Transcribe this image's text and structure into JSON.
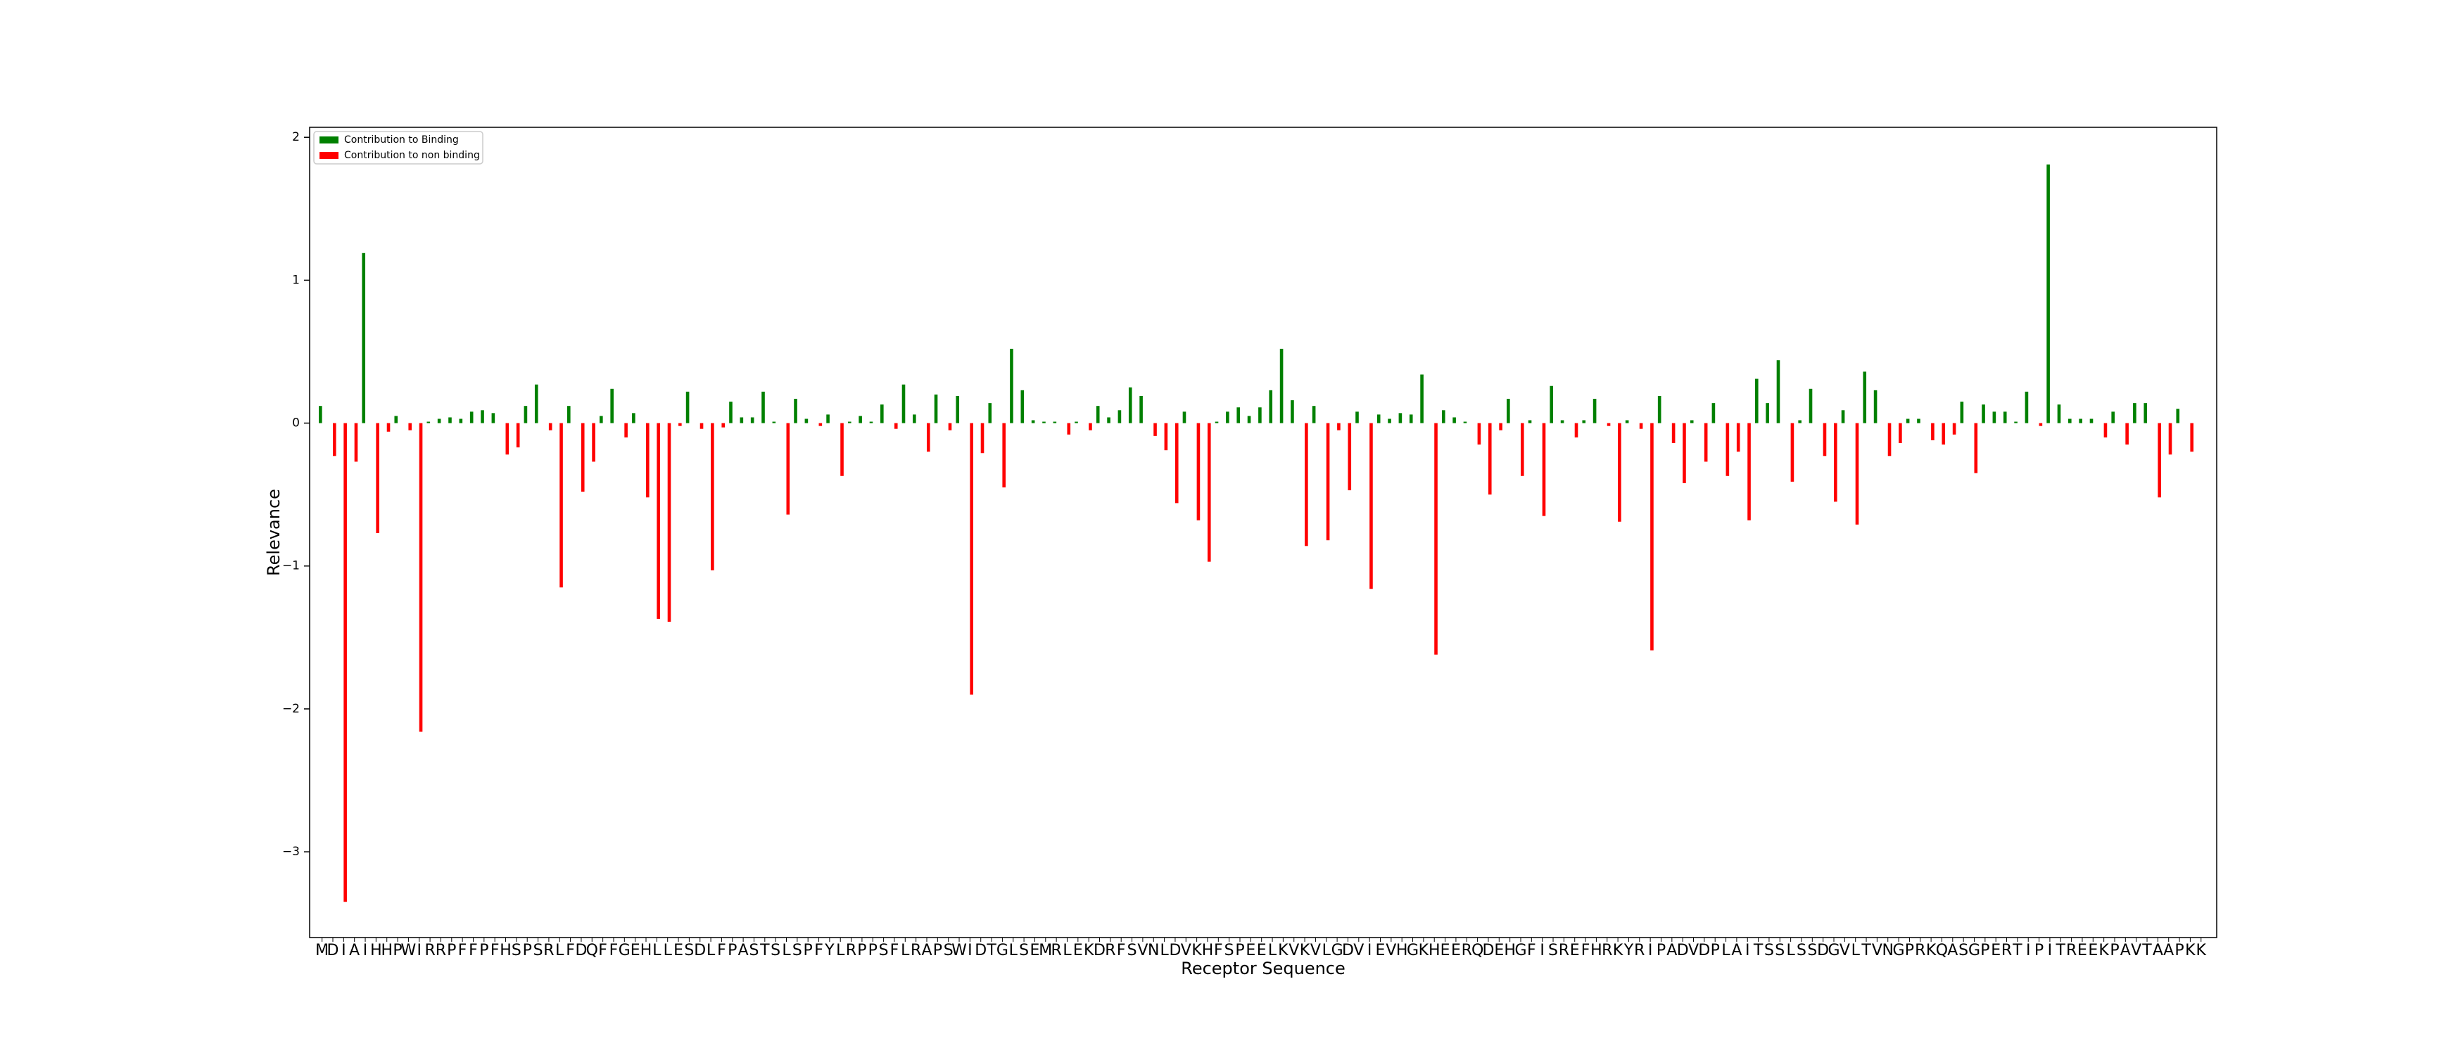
{
  "chart_data": {
    "type": "bar",
    "x_label": "Receptor Sequence",
    "y_label": "Relevance",
    "legend": "upper left",
    "ylim": [
      -3.6,
      2.07
    ],
    "yticks": [
      {
        "value": -3,
        "label": "−3"
      },
      {
        "value": -2,
        "label": "−2"
      },
      {
        "value": -1,
        "label": "−1"
      },
      0,
      1,
      2
    ],
    "categories": [
      "M",
      "D",
      "I",
      "A",
      "I",
      "H",
      "H",
      "P",
      "W",
      "I",
      "R",
      "R",
      "P",
      "F",
      "F",
      "P",
      "F",
      "H",
      "S",
      "P",
      "S",
      "R",
      "L",
      "F",
      "D",
      "Q",
      "F",
      "F",
      "G",
      "E",
      "H",
      "L",
      "L",
      "E",
      "S",
      "D",
      "L",
      "F",
      "P",
      "A",
      "S",
      "T",
      "S",
      "L",
      "S",
      "P",
      "F",
      "Y",
      "L",
      "R",
      "P",
      "P",
      "S",
      "F",
      "L",
      "R",
      "A",
      "P",
      "S",
      "W",
      "I",
      "D",
      "T",
      "G",
      "L",
      "S",
      "E",
      "M",
      "R",
      "L",
      "E",
      "K",
      "D",
      "R",
      "F",
      "S",
      "V",
      "N",
      "L",
      "D",
      "V",
      "K",
      "H",
      "F",
      "S",
      "P",
      "E",
      "E",
      "L",
      "K",
      "V",
      "K",
      "V",
      "L",
      "G",
      "D",
      "V",
      "I",
      "E",
      "V",
      "H",
      "G",
      "K",
      "H",
      "E",
      "E",
      "R",
      "Q",
      "D",
      "E",
      "H",
      "G",
      "F",
      "I",
      "S",
      "R",
      "E",
      "F",
      "H",
      "R",
      "K",
      "Y",
      "R",
      "I",
      "P",
      "A",
      "D",
      "V",
      "D",
      "P",
      "L",
      "A",
      "I",
      "T",
      "S",
      "S",
      "L",
      "S",
      "S",
      "D",
      "G",
      "V",
      "L",
      "T",
      "V",
      "N",
      "G",
      "P",
      "R",
      "K",
      "Q",
      "A",
      "S",
      "G",
      "P",
      "E",
      "R",
      "T",
      "I",
      "P",
      "I",
      "T",
      "R",
      "E",
      "E",
      "K",
      "P",
      "A",
      "V",
      "T",
      "A",
      "A",
      "P",
      "K",
      "K"
    ],
    "series": [
      {
        "name": "Contribution to Binding",
        "color": "#008000",
        "values": [
          0.12,
          null,
          null,
          null,
          1.19,
          null,
          null,
          0.05,
          null,
          null,
          0.01,
          0.03,
          0.04,
          0.03,
          0.08,
          0.09,
          0.07,
          null,
          null,
          0.12,
          0.27,
          null,
          null,
          0.12,
          null,
          null,
          0.05,
          0.24,
          null,
          0.07,
          null,
          null,
          null,
          null,
          0.22,
          null,
          null,
          null,
          0.15,
          0.04,
          0.04,
          0.22,
          0.01,
          null,
          0.17,
          0.03,
          null,
          0.06,
          null,
          0.01,
          0.05,
          0.01,
          0.13,
          null,
          0.27,
          0.06,
          null,
          0.2,
          null,
          0.19,
          null,
          null,
          0.14,
          null,
          0.52,
          0.23,
          0.02,
          0.01,
          0.01,
          null,
          0.01,
          null,
          0.12,
          0.04,
          0.09,
          0.25,
          0.19,
          null,
          null,
          null,
          0.08,
          null,
          null,
          0.01,
          0.08,
          0.11,
          0.05,
          0.11,
          0.23,
          0.52,
          0.16,
          null,
          0.12,
          null,
          null,
          null,
          0.08,
          null,
          0.06,
          0.03,
          0.07,
          0.06,
          0.34,
          null,
          0.09,
          0.04,
          0.01,
          null,
          null,
          null,
          0.17,
          null,
          0.02,
          null,
          0.26,
          0.02,
          null,
          0.02,
          0.17,
          null,
          null,
          0.02,
          null,
          null,
          0.19,
          null,
          null,
          0.02,
          null,
          0.14,
          null,
          null,
          null,
          0.31,
          0.14,
          0.44,
          null,
          0.02,
          0.24,
          null,
          null,
          0.09,
          null,
          0.36,
          0.23,
          null,
          null,
          0.03,
          0.03,
          null,
          null,
          null,
          0.15,
          null,
          0.13,
          0.08,
          0.08,
          0.01,
          0.22,
          null,
          1.81,
          0.13,
          0.03,
          0.03,
          0.03,
          null,
          0.08,
          null,
          0.14,
          0.14,
          null,
          null,
          0.1,
          null,
          null
        ]
      },
      {
        "name": "Contribution to non binding",
        "color": "#ff0000",
        "values": [
          null,
          -0.23,
          -3.35,
          -0.27,
          null,
          -0.77,
          -0.06,
          null,
          -0.05,
          -2.16,
          null,
          null,
          null,
          null,
          null,
          null,
          null,
          -0.22,
          -0.17,
          null,
          null,
          -0.05,
          -1.15,
          null,
          -0.48,
          -0.27,
          null,
          null,
          -0.1,
          null,
          -0.52,
          -1.37,
          -1.39,
          -0.02,
          null,
          -0.04,
          -1.03,
          -0.03,
          null,
          null,
          null,
          null,
          null,
          -0.64,
          null,
          null,
          -0.02,
          null,
          -0.37,
          null,
          null,
          null,
          null,
          -0.04,
          null,
          null,
          -0.2,
          null,
          -0.05,
          null,
          -1.9,
          -0.21,
          null,
          -0.45,
          null,
          null,
          null,
          null,
          null,
          -0.08,
          null,
          -0.05,
          null,
          null,
          null,
          null,
          null,
          -0.09,
          -0.19,
          -0.56,
          null,
          -0.68,
          -0.97,
          null,
          null,
          null,
          null,
          null,
          null,
          null,
          null,
          -0.86,
          null,
          -0.82,
          -0.05,
          -0.47,
          null,
          -1.16,
          null,
          null,
          null,
          null,
          null,
          -1.62,
          null,
          null,
          null,
          -0.15,
          -0.5,
          -0.05,
          null,
          -0.37,
          null,
          -0.65,
          null,
          null,
          -0.1,
          null,
          null,
          -0.02,
          -0.69,
          null,
          -0.04,
          -1.59,
          null,
          -0.14,
          -0.42,
          null,
          -0.27,
          null,
          -0.37,
          -0.2,
          -0.68,
          null,
          null,
          null,
          -0.41,
          null,
          null,
          -0.23,
          -0.55,
          null,
          -0.71,
          null,
          null,
          -0.23,
          -0.14,
          null,
          null,
          -0.12,
          -0.15,
          -0.08,
          null,
          -0.35,
          null,
          null,
          null,
          null,
          null,
          -0.02,
          null,
          null,
          null,
          null,
          null,
          -0.1,
          null,
          -0.15,
          null,
          null,
          -0.52,
          -0.22,
          null,
          -0.2,
          null
        ]
      }
    ]
  }
}
